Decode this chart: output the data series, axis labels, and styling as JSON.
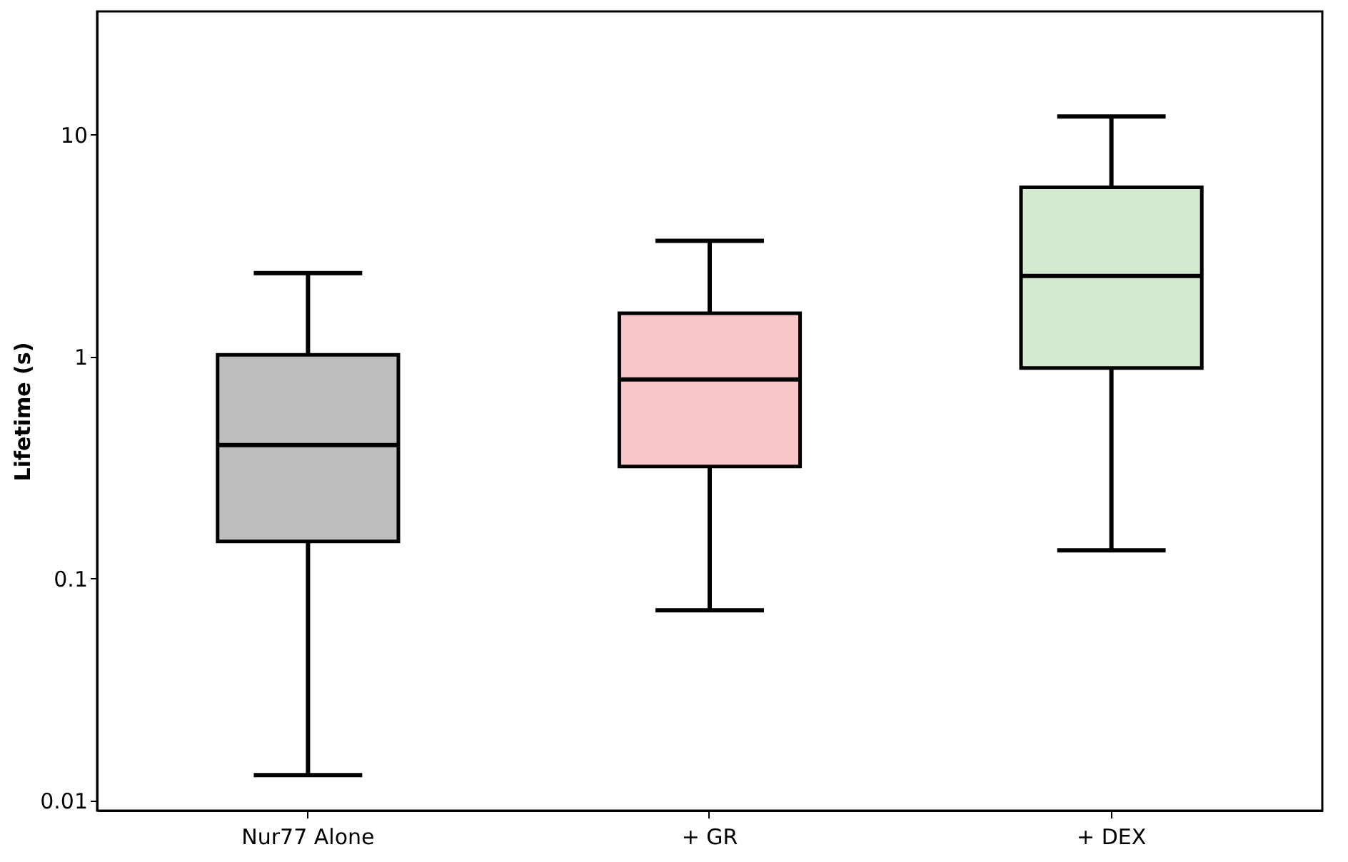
{
  "chart_data": {
    "type": "box",
    "ylabel": "Lifetime (s)",
    "log": true,
    "grid": false,
    "categories": [
      "Nur77 Alone",
      "+ GR",
      "+ DEX"
    ],
    "colors": [
      "#bebebe",
      "#f7c6c8",
      "#d5e8d0"
    ],
    "boxes": [
      {
        "low": 0.013,
        "q1": 0.147,
        "median": 0.4,
        "q3": 1.02,
        "high": 2.38
      },
      {
        "low": 0.072,
        "q1": 0.32,
        "median": 0.79,
        "q3": 1.57,
        "high": 3.33
      },
      {
        "low": 0.134,
        "q1": 0.89,
        "median": 2.31,
        "q3": 5.8,
        "high": 12.1
      }
    ],
    "ylim": [
      0.009,
      36
    ],
    "yticks": [
      0.01,
      0.1,
      1,
      10
    ]
  }
}
